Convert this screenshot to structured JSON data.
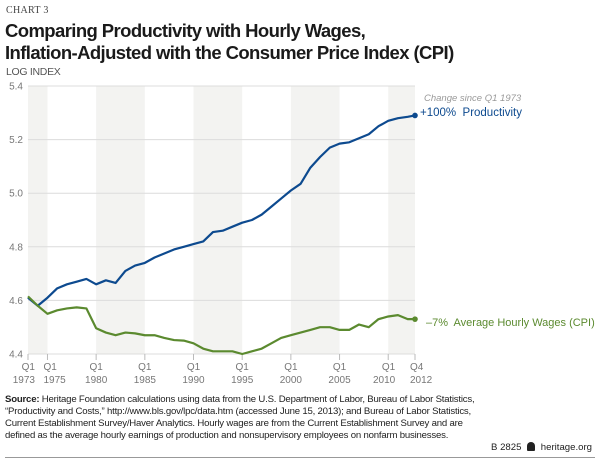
{
  "header": {
    "chart_number": "CHART 3",
    "title_line1": "Comparing Productivity with Hourly Wages,",
    "title_line2": "Inflation-Adjusted with the Consumer Price Index (CPI)"
  },
  "chart_data": {
    "type": "line",
    "title": "Comparing Productivity with Hourly Wages, Inflation-Adjusted with the Consumer Price Index (CPI)",
    "ylabel": "LOG INDEX",
    "xlabel": "",
    "ylim": [
      4.4,
      5.4
    ],
    "yticks": [
      "4.4",
      "4.6",
      "4.8",
      "5.0",
      "5.2",
      "5.4"
    ],
    "xlim": [
      1973.0,
      2012.75
    ],
    "xticks": [
      {
        "q": "Q1",
        "year": "1973",
        "x": 1973.0
      },
      {
        "q": "Q1",
        "year": "1975",
        "x": 1975.0
      },
      {
        "q": "Q1",
        "year": "1980",
        "x": 1980.0
      },
      {
        "q": "Q1",
        "year": "1985",
        "x": 1985.0
      },
      {
        "q": "Q1",
        "year": "1990",
        "x": 1990.0
      },
      {
        "q": "Q1",
        "year": "1995",
        "x": 1995.0
      },
      {
        "q": "Q1",
        "year": "2000",
        "x": 2000.0
      },
      {
        "q": "Q1",
        "year": "2005",
        "x": 2005.0
      },
      {
        "q": "Q1",
        "year": "2010",
        "x": 2010.0
      },
      {
        "q": "Q4",
        "year": "2012",
        "x": 2012.75
      }
    ],
    "shaded_periods": [
      [
        1973.0,
        1975.0
      ],
      [
        1980.0,
        1985.0
      ],
      [
        1990.0,
        1995.0
      ],
      [
        2000.0,
        2005.0
      ],
      [
        2010.0,
        2012.75
      ]
    ],
    "grid": true,
    "x": [
      1973,
      1974,
      1975,
      1976,
      1977,
      1978,
      1979,
      1980,
      1981,
      1982,
      1983,
      1984,
      1985,
      1986,
      1987,
      1988,
      1989,
      1990,
      1991,
      1992,
      1993,
      1994,
      1995,
      1996,
      1997,
      1998,
      1999,
      2000,
      2001,
      2002,
      2003,
      2004,
      2005,
      2006,
      2007,
      2008,
      2009,
      2010,
      2011,
      2012,
      2012.75
    ],
    "series": [
      {
        "name": "Productivity",
        "color": "#0d4a8f",
        "values": [
          4.61,
          4.58,
          4.61,
          4.645,
          4.66,
          4.67,
          4.68,
          4.66,
          4.675,
          4.665,
          4.71,
          4.73,
          4.74,
          4.76,
          4.775,
          4.79,
          4.8,
          4.81,
          4.82,
          4.855,
          4.86,
          4.875,
          4.89,
          4.9,
          4.92,
          4.95,
          4.98,
          5.01,
          5.035,
          5.095,
          5.135,
          5.17,
          5.185,
          5.19,
          5.205,
          5.22,
          5.25,
          5.27,
          5.28,
          5.285,
          5.29
        ]
      },
      {
        "name": "Average Hourly Wages (CPI)",
        "color": "#5b8a2f",
        "values": [
          4.615,
          4.58,
          4.55,
          4.563,
          4.57,
          4.574,
          4.57,
          4.496,
          4.48,
          4.47,
          4.48,
          4.477,
          4.47,
          4.47,
          4.46,
          4.452,
          4.45,
          4.44,
          4.42,
          4.41,
          4.41,
          4.41,
          4.4,
          4.41,
          4.42,
          4.44,
          4.46,
          4.47,
          4.48,
          4.49,
          4.5,
          4.5,
          4.49,
          4.49,
          4.51,
          4.5,
          4.53,
          4.54,
          4.545,
          4.53,
          4.53
        ]
      }
    ],
    "annotations": {
      "note": "Change since Q1 1973",
      "productivity_label": "+100%  Productivity",
      "wages_label": "–7%  Average Hourly Wages (CPI)"
    },
    "legend": "none (direct labels at right)"
  },
  "footer": {
    "source_label": "Source:",
    "source_text": " Heritage Foundation calculations using data from the U.S. Department of Labor, Bureau of Labor Statistics, “Productivity and Costs,” http://www.bls.gov/lpc/data.htm (accessed June 15, 2013); and Bureau of Labor Statistics, Current Establishment Survey/Haver Analytics. Hourly wages are from the Current Establishment Survey and are defined as the average hourly earnings of production and nonsupervisory employees on nonfarm businesses.",
    "report_number": "B 2825",
    "logo_icon": "liberty-bell-icon",
    "site": "heritage.org"
  }
}
